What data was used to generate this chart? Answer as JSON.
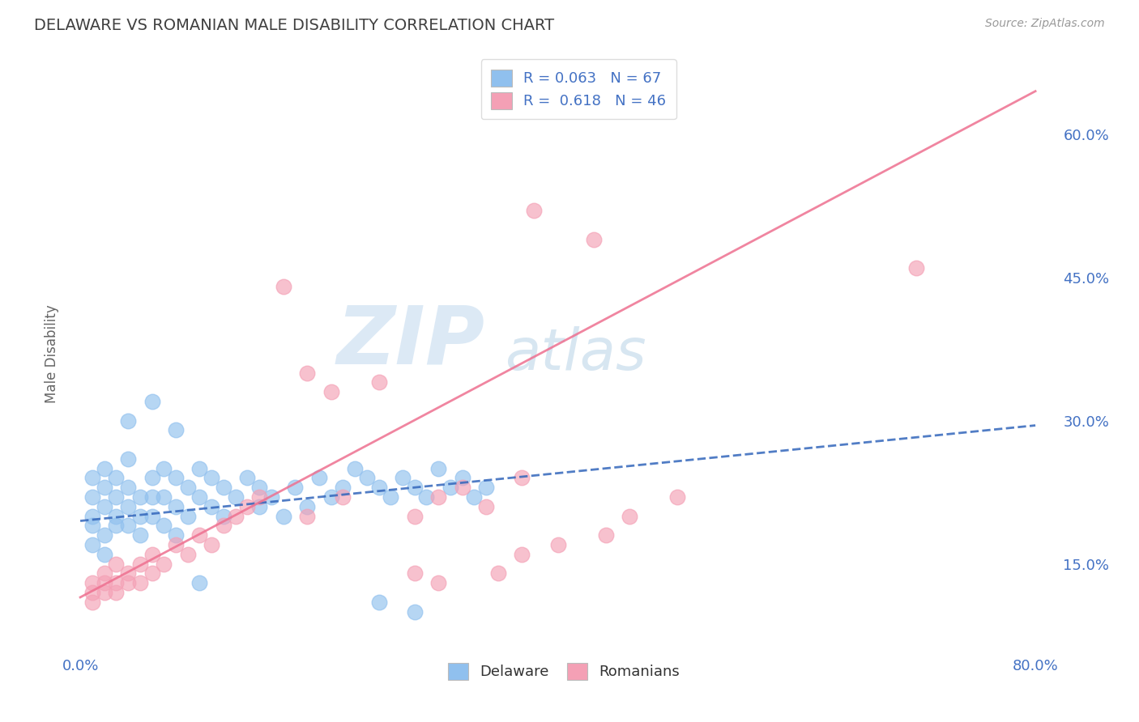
{
  "title": "DELAWARE VS ROMANIAN MALE DISABILITY CORRELATION CHART",
  "source": "Source: ZipAtlas.com",
  "ylabel": "Male Disability",
  "xlim": [
    -0.01,
    0.82
  ],
  "ylim": [
    0.06,
    0.68
  ],
  "x_ticks": [
    0.0,
    0.8
  ],
  "x_tick_labels": [
    "0.0%",
    "80.0%"
  ],
  "y_ticks_right": [
    0.15,
    0.3,
    0.45,
    0.6
  ],
  "y_tick_labels_right": [
    "15.0%",
    "30.0%",
    "45.0%",
    "60.0%"
  ],
  "legend_R": [
    "0.063",
    "0.618"
  ],
  "legend_N": [
    "67",
    "46"
  ],
  "delaware_color": "#90C0EE",
  "romanian_color": "#F4A0B5",
  "delaware_line_color": "#3366BB",
  "romanian_line_color": "#EE7090",
  "watermark_ZIP_color": "#C8DFF0",
  "watermark_atlas_color": "#A8C8E8",
  "background_color": "#FFFFFF",
  "grid_color": "#CCCCCC",
  "title_color": "#404040",
  "axis_label_color": "#666666",
  "tick_label_color": "#4472C4",
  "legend_text_color": "#333333",
  "legend_R_color": "#4472C4",
  "delaware_x": [
    0.01,
    0.01,
    0.01,
    0.01,
    0.01,
    0.02,
    0.02,
    0.02,
    0.02,
    0.02,
    0.03,
    0.03,
    0.03,
    0.03,
    0.04,
    0.04,
    0.04,
    0.04,
    0.05,
    0.05,
    0.05,
    0.06,
    0.06,
    0.06,
    0.07,
    0.07,
    0.07,
    0.08,
    0.08,
    0.08,
    0.09,
    0.09,
    0.1,
    0.1,
    0.11,
    0.11,
    0.12,
    0.12,
    0.13,
    0.14,
    0.15,
    0.15,
    0.16,
    0.17,
    0.18,
    0.19,
    0.2,
    0.21,
    0.22,
    0.23,
    0.24,
    0.25,
    0.26,
    0.27,
    0.28,
    0.29,
    0.3,
    0.31,
    0.32,
    0.33,
    0.34,
    0.04,
    0.06,
    0.08,
    0.1,
    0.25,
    0.28
  ],
  "delaware_y": [
    0.2,
    0.22,
    0.24,
    0.19,
    0.17,
    0.23,
    0.21,
    0.18,
    0.16,
    0.25,
    0.22,
    0.2,
    0.19,
    0.24,
    0.23,
    0.21,
    0.19,
    0.26,
    0.22,
    0.2,
    0.18,
    0.24,
    0.22,
    0.2,
    0.25,
    0.22,
    0.19,
    0.24,
    0.21,
    0.18,
    0.23,
    0.2,
    0.25,
    0.22,
    0.24,
    0.21,
    0.23,
    0.2,
    0.22,
    0.24,
    0.23,
    0.21,
    0.22,
    0.2,
    0.23,
    0.21,
    0.24,
    0.22,
    0.23,
    0.25,
    0.24,
    0.23,
    0.22,
    0.24,
    0.23,
    0.22,
    0.25,
    0.23,
    0.24,
    0.22,
    0.23,
    0.3,
    0.32,
    0.29,
    0.13,
    0.11,
    0.1
  ],
  "romanian_x": [
    0.01,
    0.01,
    0.01,
    0.02,
    0.02,
    0.02,
    0.03,
    0.03,
    0.03,
    0.04,
    0.04,
    0.05,
    0.05,
    0.06,
    0.06,
    0.07,
    0.08,
    0.09,
    0.1,
    0.11,
    0.12,
    0.13,
    0.14,
    0.15,
    0.17,
    0.19,
    0.22,
    0.25,
    0.28,
    0.3,
    0.32,
    0.34,
    0.37,
    0.37,
    0.38,
    0.4,
    0.43,
    0.44,
    0.46,
    0.5,
    0.7,
    0.19,
    0.21,
    0.28,
    0.3,
    0.35
  ],
  "romanian_y": [
    0.13,
    0.12,
    0.11,
    0.14,
    0.13,
    0.12,
    0.15,
    0.13,
    0.12,
    0.14,
    0.13,
    0.15,
    0.13,
    0.14,
    0.16,
    0.15,
    0.17,
    0.16,
    0.18,
    0.17,
    0.19,
    0.2,
    0.21,
    0.22,
    0.44,
    0.2,
    0.22,
    0.34,
    0.2,
    0.22,
    0.23,
    0.21,
    0.24,
    0.16,
    0.52,
    0.17,
    0.49,
    0.18,
    0.2,
    0.22,
    0.46,
    0.35,
    0.33,
    0.14,
    0.13,
    0.14
  ],
  "del_line_x": [
    0.0,
    0.8
  ],
  "del_line_y": [
    0.195,
    0.295
  ],
  "rom_line_x": [
    0.0,
    0.8
  ],
  "rom_line_y": [
    0.115,
    0.645
  ]
}
